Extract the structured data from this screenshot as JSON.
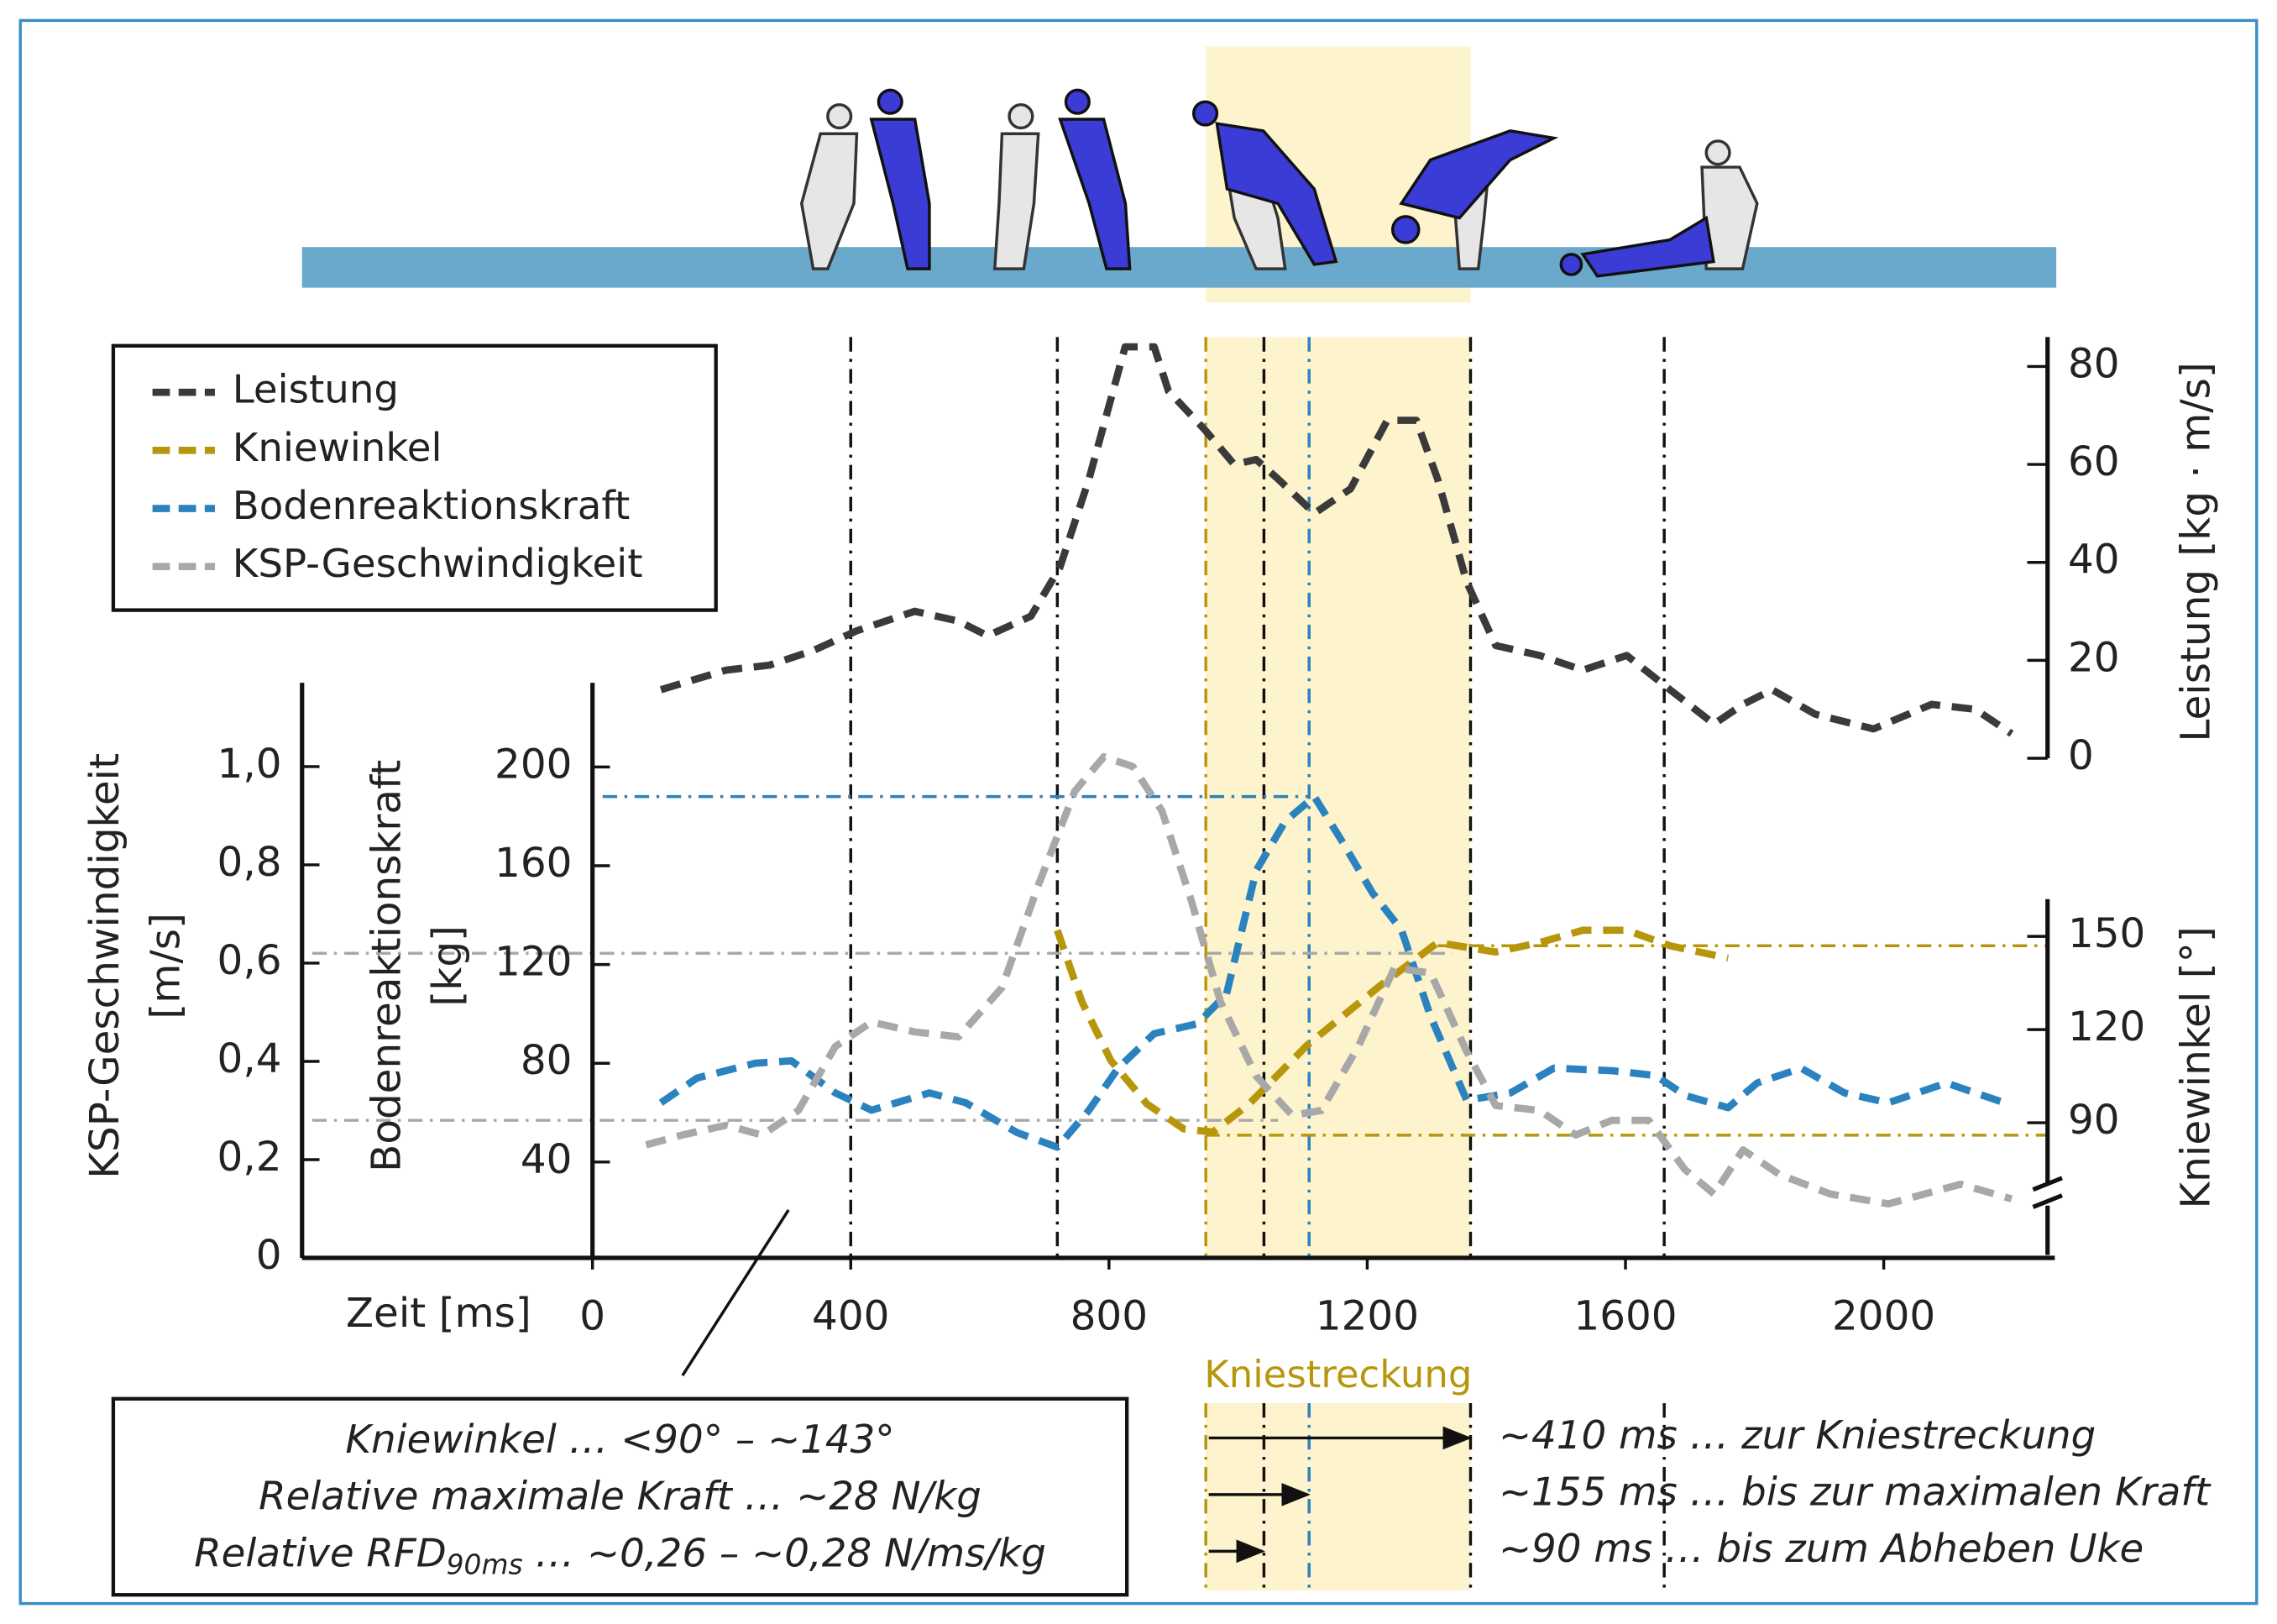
{
  "chart_data": {
    "type": "line",
    "xlabel": "Zeit [ms]",
    "xlim": [
      0,
      2265
    ],
    "xticks": [
      0,
      400,
      800,
      1200,
      1600,
      2000
    ],
    "axes": {
      "ksp": {
        "label": [
          "KSP-Geschwindigkeit",
          "[m/s]"
        ],
        "lim": [
          0,
          1.15
        ],
        "ticks": [
          0,
          {
            "value": 0.2,
            "label": "0,2"
          },
          {
            "value": 0.4,
            "label": "0,4"
          },
          {
            "value": 0.6,
            "label": "0,6"
          },
          {
            "value": 0.8,
            "label": "0,8"
          },
          {
            "value": 1.0,
            "label": "1,0"
          }
        ]
      },
      "force": {
        "label": [
          "Bodenreaktionskraft",
          "[kg]"
        ],
        "lim": [
          0,
          230
        ],
        "ticks": [
          40,
          80,
          120,
          160,
          200
        ]
      },
      "power": {
        "label": "Leistung [kg · m/s]",
        "lim": [
          0,
          86
        ],
        "ticks": [
          0,
          20,
          40,
          60,
          80
        ]
      },
      "knee": {
        "label": "Kniewinkel [°]",
        "lim": [
          68,
          162
        ],
        "ticks": [
          90,
          120,
          150
        ]
      }
    },
    "series": [
      {
        "name": "Leistung",
        "color": "#3a3a3a",
        "axis": "power",
        "x": [
          106,
          207,
          274,
          342,
          409,
          499,
          567,
          612,
          679,
          724,
          769,
          825,
          870,
          892,
          949,
          994,
          1028,
          1062,
          1118,
          1174,
          1231,
          1276,
          1309,
          1354,
          1399,
          1467,
          1534,
          1602,
          1669,
          1737,
          1782,
          1827,
          1894,
          1984,
          2074,
          2142,
          2198
        ],
        "values": [
          14,
          18,
          19,
          22,
          26,
          30,
          28,
          25,
          29,
          39,
          57,
          84,
          84,
          75,
          67,
          60,
          61,
          57,
          50,
          55,
          69,
          69,
          57,
          36,
          23,
          21,
          18,
          21,
          14,
          7,
          11,
          14,
          9,
          6,
          11,
          10,
          5
        ]
      },
      {
        "name": "Kniewinkel",
        "color": "#b8960c",
        "axis": "knee",
        "x": [
          720,
          758,
          803,
          859,
          916,
          961,
          1017,
          1107,
          1219,
          1309,
          1399,
          1467,
          1534,
          1602,
          1669,
          1759
        ],
        "values": [
          152,
          129,
          110,
          96,
          88,
          87,
          96,
          115,
          134,
          148,
          145,
          148,
          152,
          152,
          147,
          143
        ]
      },
      {
        "name": "Bodenreaktionskraft",
        "color": "#2a82bf",
        "axis": "force",
        "x": [
          106,
          162,
          252,
          308,
          376,
          432,
          522,
          578,
          657,
          720,
          769,
          814,
          870,
          937,
          982,
          1028,
          1073,
          1118,
          1163,
          1208,
          1253,
          1298,
          1354,
          1422,
          1489,
          1579,
          1647,
          1692,
          1759,
          1804,
          1872,
          1939,
          2007,
          2097,
          2187
        ],
        "values": [
          64,
          74,
          80,
          81,
          68,
          61,
          68,
          64,
          52,
          46,
          61,
          78,
          92,
          96,
          108,
          158,
          178,
          188,
          169,
          149,
          134,
          99,
          65,
          68,
          78,
          77,
          75,
          67,
          62,
          72,
          78,
          68,
          64,
          72,
          64
        ]
      },
      {
        "name": "KSP-Geschwindigkeit",
        "color": "#a8a8a8",
        "axis": "ksp",
        "x": [
          83,
          139,
          207,
          263,
          319,
          376,
          432,
          499,
          567,
          634,
          691,
          747,
          792,
          837,
          882,
          927,
          973,
          1028,
          1084,
          1129,
          1186,
          1242,
          1298,
          1354,
          1399,
          1467,
          1523,
          1579,
          1636,
          1692,
          1737,
          1782,
          1838,
          1917,
          2007,
          2119,
          2198
        ],
        "values": [
          0.23,
          0.25,
          0.27,
          0.25,
          0.3,
          0.43,
          0.48,
          0.46,
          0.45,
          0.55,
          0.76,
          0.95,
          1.02,
          1.0,
          0.91,
          0.73,
          0.52,
          0.37,
          0.29,
          0.3,
          0.43,
          0.59,
          0.58,
          0.42,
          0.31,
          0.3,
          0.25,
          0.28,
          0.28,
          0.18,
          0.13,
          0.22,
          0.17,
          0.13,
          0.11,
          0.15,
          0.12
        ]
      }
    ],
    "vlines": [
      400,
      720,
      1040,
      1360,
      1660
    ],
    "marker_lines": [
      {
        "x": 950,
        "color": "#b8960c"
      },
      {
        "x": 1110,
        "color": "#2a82bf"
      }
    ],
    "ref_lines": [
      {
        "axis": "force",
        "value": 188,
        "to": 1111,
        "color": "#2a82bf"
      },
      {
        "axis": "ksp",
        "value": 0.62,
        "to": 1332,
        "color": "#a8a8a8"
      },
      {
        "axis": "ksp",
        "value": 0.28,
        "to": 1062,
        "color": "#a8a8a8"
      },
      {
        "axis": "knee",
        "value": 147,
        "from": 1309,
        "color": "#b8960c"
      },
      {
        "axis": "knee",
        "value": 86,
        "from": 949,
        "color": "#b8960c"
      }
    ],
    "highlight": [
      950,
      1360
    ],
    "highlight_label": "Kniestreckung",
    "timeline": [
      {
        "text": "~410 ms … zur Kniestreckung",
        "to": 1360
      },
      {
        "text": "~155 ms … bis zur maximalen Kraft",
        "to": 1110
      },
      {
        "text": "~90 ms … bis zum Abheben Uke",
        "to": 1040
      }
    ],
    "summary": {
      "lines": [
        "Kniewinkel … <90° – ~143°",
        "Relative maximale Kraft … ~28 N/kg"
      ],
      "rfd": [
        "Relative RFD",
        "90ms",
        " … ~0,26 – ~0,28 N/ms/kg"
      ]
    }
  }
}
